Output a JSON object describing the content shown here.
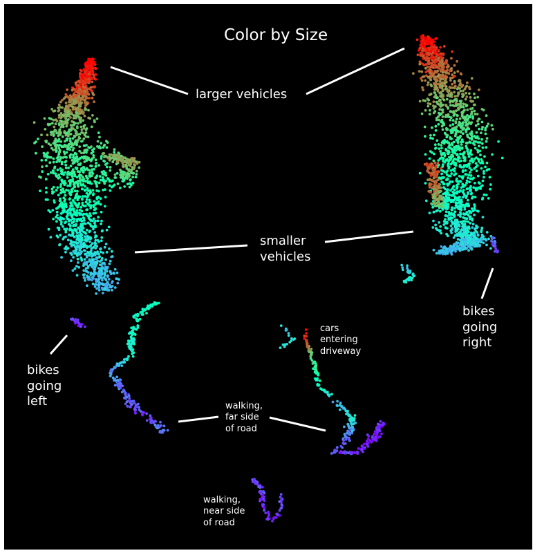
{
  "chart_data": {
    "type": "scatter",
    "title": "Color by Size",
    "xlabel": "",
    "ylabel": "",
    "axes_visible": false,
    "colormap": "rainbow (violet = small, red = large)",
    "background": "#000000",
    "annotations": [
      {
        "id": "larger-vehicles",
        "text": "larger vehicles"
      },
      {
        "id": "smaller-vehicles",
        "text": "smaller\nvehicles"
      },
      {
        "id": "bikes-left",
        "text": "bikes\ngoing\nleft"
      },
      {
        "id": "bikes-right",
        "text": "bikes\ngoing\nright"
      },
      {
        "id": "cars-driveway",
        "text": "cars\nentering\ndriveway"
      },
      {
        "id": "walking-far",
        "text": "walking,\nfar side\nof road"
      },
      {
        "id": "walking-near",
        "text": "walking,\nnear side\nof road"
      }
    ],
    "clusters": [
      {
        "name": "left vehicle cluster",
        "size_range": [
          0.3,
          1.0
        ]
      },
      {
        "name": "right vehicle cluster",
        "size_range": [
          0.35,
          1.0
        ]
      },
      {
        "name": "bikes going left",
        "size_range": [
          0.0,
          0.15
        ]
      },
      {
        "name": "bikes going right",
        "size_range": [
          0.05,
          0.2
        ]
      },
      {
        "name": "cars entering driveway",
        "size_range": [
          0.5,
          1.0
        ]
      },
      {
        "name": "walking, far side of road",
        "size_range": [
          0.0,
          0.5
        ]
      },
      {
        "name": "walking, near side of road",
        "size_range": [
          0.0,
          0.15
        ]
      }
    ]
  }
}
